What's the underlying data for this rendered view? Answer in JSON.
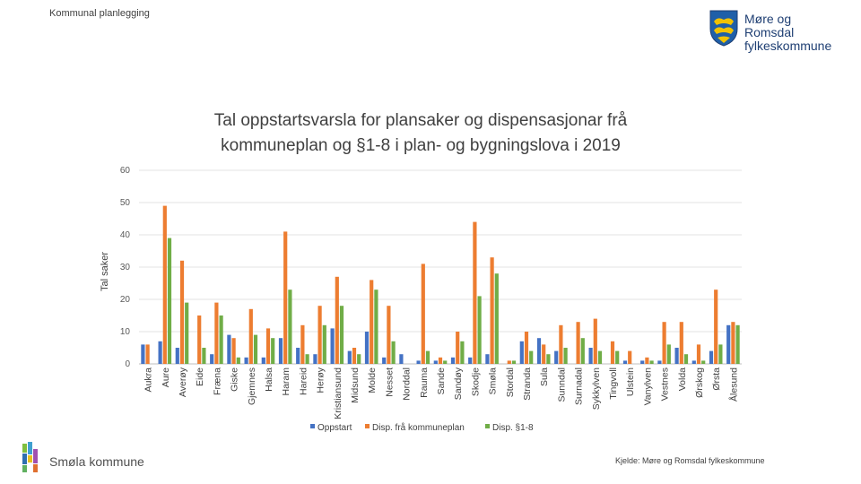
{
  "header": {
    "title": "Kommunal planlegging"
  },
  "logo": {
    "line1": "Møre og Romsdal",
    "line2": "fylkeskommune"
  },
  "footer": {
    "municipality": "Smøla kommune",
    "source": "Kjelde: Møre og Romsdal fylkeskommune"
  },
  "colors": {
    "oppstart": "#4472C4",
    "kommuneplan": "#ED7D31",
    "paragraf": "#70AD47"
  },
  "chart_data": {
    "type": "bar",
    "title_line1": "Tal oppstartsvarsla for plansaker og dispensasjonar frå",
    "title_line2": "kommuneplan og §1-8 i plan- og bygningslova i 2019",
    "ylabel": "Tal saker",
    "xlabel": "",
    "ylim": [
      0,
      60
    ],
    "yticks": [
      "0",
      "10",
      "20",
      "30",
      "40",
      "50",
      "60"
    ],
    "legend_position": "bottom",
    "categories": [
      "Aukra",
      "Aure",
      "Averøy",
      "Eide",
      "Fræna",
      "Giske",
      "Gjemnes",
      "Halsa",
      "Haram",
      "Hareid",
      "Herøy",
      "Kristiansund",
      "Midsund",
      "Molde",
      "Nesset",
      "Norddal",
      "Rauma",
      "Sande",
      "Sandøy",
      "Skodje",
      "Smøla",
      "Stordal",
      "Stranda",
      "Sula",
      "Sunndal",
      "Surnadal",
      "Sykkylven",
      "Tingvoll",
      "Ulstein",
      "Vanylven",
      "Vestnes",
      "Volda",
      "Ørskog",
      "Ørsta",
      "Ålesund"
    ],
    "series": [
      {
        "name": "Oppstart",
        "values": [
          6,
          7,
          5,
          0,
          3,
          9,
          2,
          2,
          8,
          5,
          3,
          11,
          4,
          10,
          2,
          3,
          1,
          1,
          2,
          2,
          3,
          0,
          7,
          8,
          4,
          0,
          5,
          0,
          1,
          1,
          1,
          5,
          1,
          4,
          12
        ]
      },
      {
        "name": "Disp. frå kommuneplan",
        "values": [
          6,
          49,
          32,
          15,
          19,
          8,
          17,
          11,
          41,
          12,
          18,
          27,
          5,
          26,
          18,
          0,
          31,
          2,
          10,
          44,
          33,
          1,
          10,
          6,
          12,
          13,
          14,
          7,
          4,
          2,
          13,
          13,
          6,
          23,
          13
        ]
      },
      {
        "name": "Disp. §1-8",
        "values": [
          0,
          39,
          19,
          5,
          15,
          2,
          9,
          8,
          23,
          3,
          12,
          18,
          3,
          23,
          7,
          0,
          4,
          1,
          7,
          21,
          28,
          1,
          4,
          3,
          5,
          8,
          4,
          4,
          0,
          1,
          6,
          3,
          1,
          6,
          12
        ]
      }
    ]
  }
}
